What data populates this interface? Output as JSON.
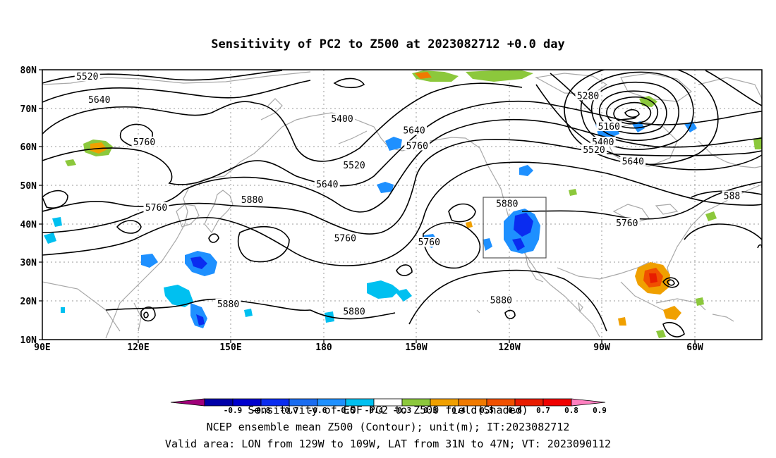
{
  "title": "Sensitivity of PC2 to Z500 at 2023082712 +0.0 day",
  "lat_ticks": [
    "80N",
    "70N",
    "60N",
    "50N",
    "40N",
    "30N",
    "20N",
    "10N"
  ],
  "lon_ticks": [
    "90E",
    "120E",
    "150E",
    "180",
    "150W",
    "120W",
    "90W",
    "60W"
  ],
  "contour_labels": [
    {
      "text": "5520",
      "lon": 105,
      "lat": 78
    },
    {
      "text": "5640",
      "lon": 109,
      "lat": 72
    },
    {
      "text": "5400",
      "lon": 190,
      "lat": 67
    },
    {
      "text": "5640",
      "lon": 214,
      "lat": 64
    },
    {
      "text": "5760",
      "lon": 215,
      "lat": 60
    },
    {
      "text": "5520",
      "lon": 194,
      "lat": 55
    },
    {
      "text": "5640",
      "lon": 185,
      "lat": 50
    },
    {
      "text": "5760",
      "lon": 124,
      "lat": 61
    },
    {
      "text": "5760",
      "lon": 128,
      "lat": 44
    },
    {
      "text": "5880",
      "lon": 160,
      "lat": 46
    },
    {
      "text": "5760",
      "lon": 191,
      "lat": 36
    },
    {
      "text": "5760",
      "lon": 219,
      "lat": 35
    },
    {
      "text": "5880",
      "lon": 245,
      "lat": 45
    },
    {
      "text": "5880",
      "lon": 152,
      "lat": 19
    },
    {
      "text": "5880",
      "lon": 194,
      "lat": 17
    },
    {
      "text": "5880",
      "lon": 243,
      "lat": 20
    },
    {
      "text": "5280",
      "lon": 272,
      "lat": 73
    },
    {
      "text": "5160",
      "lon": 279,
      "lat": 65
    },
    {
      "text": "5400",
      "lon": 277,
      "lat": 61
    },
    {
      "text": "5520",
      "lon": 274,
      "lat": 59
    },
    {
      "text": "5640",
      "lon": 287,
      "lat": 56
    },
    {
      "text": "5760",
      "lon": 285,
      "lat": 40
    },
    {
      "text": "588",
      "lon": 320,
      "lat": 47
    }
  ],
  "valid_area": {
    "lon_from": "129W",
    "lon_to": "109W",
    "lat_from": "31N",
    "lat_to": "47N"
  },
  "colorbar": {
    "labels": [
      "-0.9",
      "-0.8",
      "-0.7",
      "-0.6",
      "-0.5",
      "-0.4",
      "-0.3",
      "0.3",
      "0.4",
      "0.5",
      "0.6",
      "0.7",
      "0.8",
      "0.9"
    ],
    "colors": [
      "#a0007a",
      "#0000a8",
      "#0000cd",
      "#0a2cf0",
      "#1a6cf0",
      "#1e90ff",
      "#00c0f0",
      "#ffffff",
      "#8cc83c",
      "#f0a000",
      "#f07a00",
      "#f05000",
      "#e81c00",
      "#f00000",
      "#ff80c0"
    ]
  },
  "footer_line1": "Sensitivity of EOF PC2 to Z500 field(Shaded)",
  "footer_line2": "NCEP ensemble mean Z500 (Contour); unit(m); IT:2023082712",
  "footer_line3": "Valid area: LON from 129W to 109W, LAT from 31N to 47N; VT: 2023090112"
}
